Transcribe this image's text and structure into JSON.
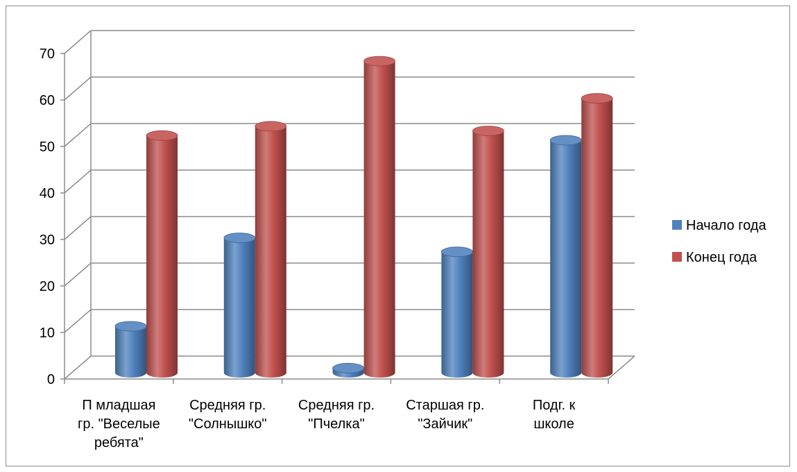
{
  "chart_data": {
    "type": "bar",
    "categories": [
      [
        "П младшая",
        "гр. \"Веселые",
        "ребята\""
      ],
      [
        "Средняя гр.",
        "\"Солнышко\""
      ],
      [
        "Средняя гр.",
        "\"Пчелка\""
      ],
      [
        "Старшая гр.",
        "\"Зайчик\""
      ],
      [
        "Подг. к",
        "школе"
      ]
    ],
    "series": [
      {
        "name": "Начало года",
        "values": [
          10,
          29,
          1,
          26,
          50
        ],
        "color": "#4f81bd"
      },
      {
        "name": "Конец года",
        "values": [
          51,
          53,
          67,
          52,
          59
        ],
        "color": "#c0504d"
      }
    ],
    "title": "",
    "xlabel": "",
    "ylabel": "",
    "ylim": [
      0,
      70
    ],
    "yticks": [
      "0",
      "10",
      "20",
      "30",
      "40",
      "50",
      "60",
      "70"
    ],
    "grid": true,
    "legend": "right",
    "style": "3d-cylinder"
  }
}
